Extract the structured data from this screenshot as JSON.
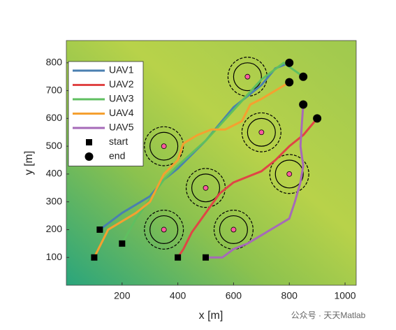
{
  "chart_data": {
    "type": "line",
    "xlabel": "x [m]",
    "ylabel": "y [m]",
    "xlim": [
      0,
      1040
    ],
    "ylim": [
      0,
      880
    ],
    "xticks": [
      200,
      400,
      600,
      800,
      1000
    ],
    "yticks": [
      100,
      200,
      300,
      400,
      500,
      600,
      700,
      800
    ],
    "legend": "upper left",
    "series": [
      {
        "name": "UAV1",
        "color": "#4a7fb0",
        "x": [
          120,
          200,
          300,
          350,
          400,
          450,
          500,
          550,
          600,
          650,
          700,
          750,
          800
        ],
        "values": [
          200,
          260,
          320,
          380,
          420,
          470,
          520,
          580,
          640,
          680,
          720,
          780,
          800
        ]
      },
      {
        "name": "UAV2",
        "color": "#e04545",
        "x": [
          400,
          420,
          450,
          500,
          550,
          600,
          650,
          700,
          750,
          800,
          850,
          900
        ],
        "values": [
          100,
          130,
          190,
          260,
          330,
          370,
          390,
          410,
          450,
          500,
          540,
          600
        ]
      },
      {
        "name": "UAV3",
        "color": "#5fbf60",
        "x": [
          200,
          250,
          300,
          350,
          400,
          500,
          600,
          700,
          780,
          850
        ],
        "values": [
          150,
          240,
          310,
          380,
          430,
          520,
          630,
          740,
          800,
          750
        ]
      },
      {
        "name": "UAV4",
        "color": "#f5a030",
        "x": [
          100,
          150,
          250,
          300,
          350,
          400,
          420,
          470,
          520,
          570,
          630,
          660,
          700,
          750,
          800
        ],
        "values": [
          100,
          200,
          260,
          300,
          400,
          450,
          510,
          540,
          560,
          560,
          590,
          650,
          670,
          700,
          730
        ]
      },
      {
        "name": "UAV5",
        "color": "#a66ab8",
        "x": [
          500,
          560,
          600,
          650,
          700,
          750,
          800,
          820,
          840,
          850,
          840,
          845,
          850
        ],
        "values": [
          100,
          100,
          130,
          150,
          180,
          210,
          240,
          300,
          370,
          430,
          500,
          580,
          650
        ]
      }
    ],
    "start": {
      "name": "start",
      "x": [
        120,
        400,
        200,
        100,
        500
      ],
      "y": [
        200,
        100,
        150,
        100,
        100
      ]
    },
    "end": {
      "name": "end",
      "x": [
        800,
        900,
        850,
        800,
        850
      ],
      "y": [
        800,
        600,
        750,
        730,
        650
      ]
    },
    "threats": {
      "x": [
        650,
        350,
        700,
        500,
        800,
        350,
        600
      ],
      "y": [
        750,
        500,
        550,
        350,
        400,
        200,
        200
      ],
      "radii": [
        50,
        70
      ]
    },
    "watermark": "公众号 · 天天Matlab"
  }
}
